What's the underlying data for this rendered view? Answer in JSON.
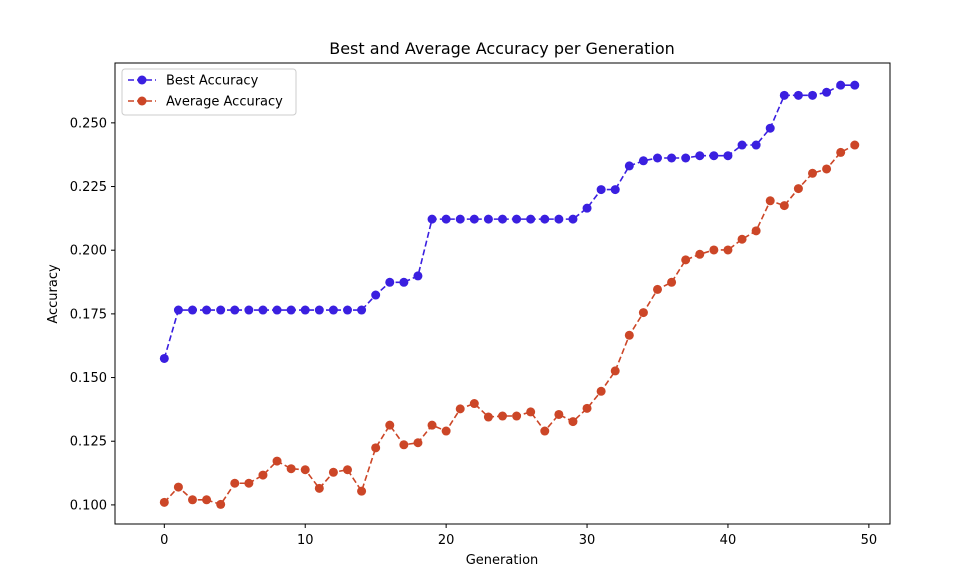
{
  "chart_data": {
    "type": "line",
    "title": "Best and Average Accuracy per Generation",
    "xlabel": "Generation",
    "ylabel": "Accuracy",
    "xlim": [
      -3.5,
      51.5
    ],
    "ylim": [
      0.0925,
      0.2735
    ],
    "xticks": [
      0,
      10,
      20,
      30,
      40,
      50
    ],
    "yticks": [
      0.1,
      0.125,
      0.15,
      0.175,
      0.2,
      0.225,
      0.25
    ],
    "xtick_labels": [
      "0",
      "10",
      "20",
      "30",
      "40",
      "50"
    ],
    "ytick_labels": [
      "0.100",
      "0.125",
      "0.150",
      "0.175",
      "0.200",
      "0.225",
      "0.250"
    ],
    "legend_position": "top-left",
    "grid": false,
    "x": [
      0,
      1,
      2,
      3,
      4,
      5,
      6,
      7,
      8,
      9,
      10,
      11,
      12,
      13,
      14,
      15,
      16,
      17,
      18,
      19,
      20,
      21,
      22,
      23,
      24,
      25,
      26,
      27,
      28,
      29,
      30,
      31,
      32,
      33,
      34,
      35,
      36,
      37,
      38,
      39,
      40,
      41,
      42,
      43,
      44,
      45,
      46,
      47,
      48,
      49
    ],
    "series": [
      {
        "name": "Best Accuracy",
        "color": "#3a1fe0",
        "style": "dashed",
        "marker": "circle",
        "values": [
          0.1575,
          0.1765,
          0.1765,
          0.1765,
          0.1765,
          0.1765,
          0.1765,
          0.1765,
          0.1765,
          0.1765,
          0.1765,
          0.1765,
          0.1765,
          0.1765,
          0.1765,
          0.1824,
          0.1874,
          0.1874,
          0.1899,
          0.2122,
          0.2122,
          0.2122,
          0.2122,
          0.2122,
          0.2122,
          0.2122,
          0.2122,
          0.2122,
          0.2122,
          0.2122,
          0.2165,
          0.2238,
          0.2238,
          0.2331,
          0.2351,
          0.2362,
          0.2362,
          0.2362,
          0.2371,
          0.2371,
          0.2371,
          0.2413,
          0.2413,
          0.2479,
          0.2608,
          0.2608,
          0.2608,
          0.262,
          0.2648,
          0.2648
        ]
      },
      {
        "name": "Average Accuracy",
        "color": "#cc4627",
        "style": "dashed",
        "marker": "circle",
        "values": [
          0.101,
          0.107,
          0.102,
          0.102,
          0.1002,
          0.1085,
          0.1085,
          0.1117,
          0.1172,
          0.1142,
          0.1138,
          0.1065,
          0.1128,
          0.1138,
          0.1054,
          0.1224,
          0.1313,
          0.1236,
          0.1244,
          0.1313,
          0.129,
          0.1377,
          0.1398,
          0.1345,
          0.1349,
          0.1349,
          0.1365,
          0.129,
          0.1355,
          0.1327,
          0.1379,
          0.1446,
          0.1526,
          0.1666,
          0.1755,
          0.1846,
          0.1874,
          0.1962,
          0.1984,
          0.2001,
          0.2001,
          0.2043,
          0.2076,
          0.2194,
          0.2175,
          0.2242,
          0.2302,
          0.2319,
          0.2384,
          0.2413
        ]
      }
    ]
  }
}
